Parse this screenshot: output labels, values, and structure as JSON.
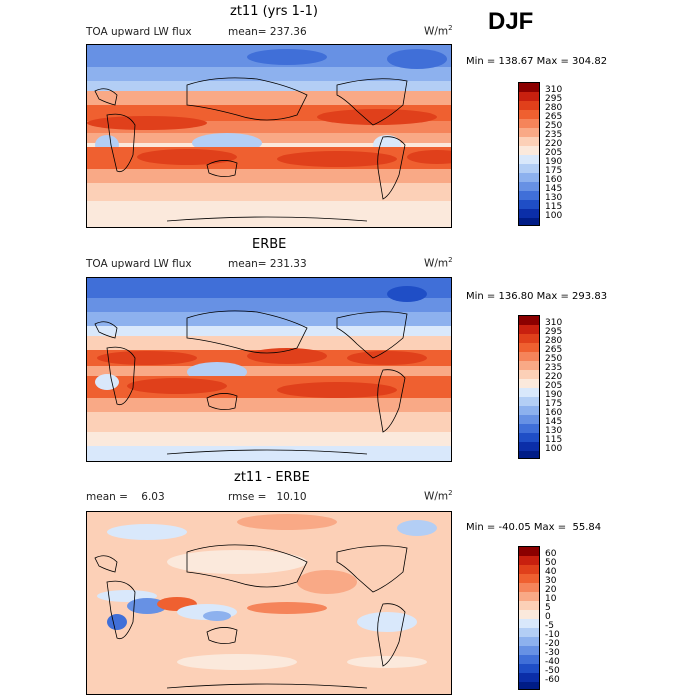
{
  "season": "DJF",
  "units": "W/m",
  "units_sup": "2",
  "panels": [
    {
      "title": "zt11 (yrs 1-1)",
      "left_label": "TOA upward LW flux",
      "stat_label": "mean= 237.36",
      "minmax": "Min = 138.67 Max = 304.82",
      "levels": [
        "310",
        "295",
        "280",
        "265",
        "250",
        "235",
        "220",
        "205",
        "190",
        "175",
        "160",
        "145",
        "130",
        "115",
        "100"
      ],
      "colors": [
        "#8b0000",
        "#c8200f",
        "#e0401b",
        "#ef6030",
        "#f5845a",
        "#f9a986",
        "#fcd0b7",
        "#fbe9dc",
        "#d9e8fb",
        "#b3cef5",
        "#8db1ee",
        "#6791e4",
        "#406fd8",
        "#1f4ec6",
        "#0b2ea8",
        "#001c86"
      ]
    },
    {
      "title": "ERBE",
      "left_label": "TOA upward LW flux",
      "stat_label": "mean= 231.33",
      "minmax": "Min = 136.80 Max = 293.83",
      "levels": [
        "310",
        "295",
        "280",
        "265",
        "250",
        "235",
        "220",
        "205",
        "190",
        "175",
        "160",
        "145",
        "130",
        "115",
        "100"
      ],
      "colors": [
        "#8b0000",
        "#c8200f",
        "#e0401b",
        "#ef6030",
        "#f5845a",
        "#f9a986",
        "#fcd0b7",
        "#fbe9dc",
        "#d9e8fb",
        "#b3cef5",
        "#8db1ee",
        "#6791e4",
        "#406fd8",
        "#1f4ec6",
        "#0b2ea8",
        "#001c86"
      ]
    },
    {
      "title": "zt11 - ERBE",
      "left_label": "mean =    6.03",
      "stat_label": "rmse =   10.10",
      "minmax": "Min = -40.05 Max =  55.84",
      "levels": [
        "60",
        "50",
        "40",
        "30",
        "20",
        "10",
        "5",
        "0",
        "-5",
        "-10",
        "-20",
        "-30",
        "-40",
        "-50",
        "-60"
      ],
      "colors": [
        "#8b0000",
        "#c8200f",
        "#e0401b",
        "#ef6030",
        "#f5845a",
        "#f9a986",
        "#fcd0b7",
        "#fbe9dc",
        "#d9e8fb",
        "#b3cef5",
        "#8db1ee",
        "#6791e4",
        "#406fd8",
        "#1f4ec6",
        "#0b2ea8",
        "#001c86"
      ]
    }
  ]
}
